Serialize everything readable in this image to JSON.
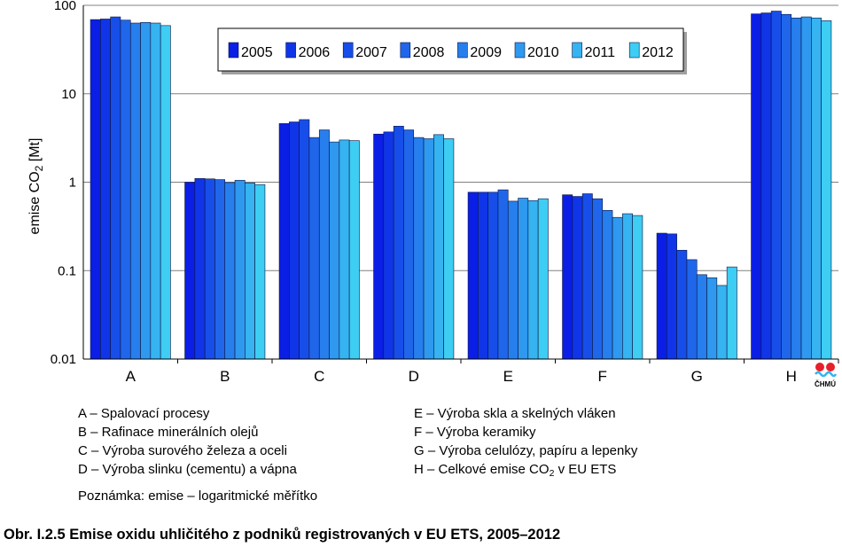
{
  "chart_data": {
    "type": "bar",
    "ylabel": "emise CO",
    "ylabel_sub": "2",
    "ylabel_unit": " [Mt]",
    "yscale": "log",
    "ylim": [
      0.01,
      100
    ],
    "yticks": [
      "100",
      "10",
      "1",
      "0.1",
      "0.01"
    ],
    "grid": true,
    "legend_position": "top-center",
    "categories": [
      "A",
      "B",
      "C",
      "D",
      "E",
      "F",
      "G",
      "H"
    ],
    "series": [
      {
        "name": "2005",
        "color": "#0a1ee6",
        "values": [
          69,
          1.0,
          4.6,
          3.5,
          0.77,
          0.72,
          0.265,
          80
        ]
      },
      {
        "name": "2006",
        "color": "#1035e8",
        "values": [
          70,
          1.1,
          4.8,
          3.7,
          0.77,
          0.69,
          0.26,
          82
        ]
      },
      {
        "name": "2007",
        "color": "#174ee9",
        "values": [
          74,
          1.09,
          5.1,
          4.3,
          0.77,
          0.74,
          0.17,
          86
        ]
      },
      {
        "name": "2008",
        "color": "#1f66eb",
        "values": [
          68,
          1.07,
          3.2,
          3.9,
          0.82,
          0.65,
          0.133,
          79
        ]
      },
      {
        "name": "2009",
        "color": "#267fed",
        "values": [
          63,
          0.99,
          3.9,
          3.2,
          0.61,
          0.48,
          0.09,
          72
        ]
      },
      {
        "name": "2010",
        "color": "#2e99ef",
        "values": [
          64,
          1.05,
          2.85,
          3.1,
          0.66,
          0.4,
          0.083,
          74
        ]
      },
      {
        "name": "2011",
        "color": "#36b3f1",
        "values": [
          63,
          0.98,
          3.0,
          3.45,
          0.62,
          0.44,
          0.068,
          72
        ]
      },
      {
        "name": "2012",
        "color": "#3ecdf3",
        "values": [
          59,
          0.94,
          2.95,
          3.1,
          0.65,
          0.42,
          0.11,
          67
        ]
      }
    ]
  },
  "logo": {
    "text": "ČHMÚ"
  },
  "notes_left": [
    "A – Spalovací procesy",
    "B – Rafinace minerálních olejů",
    "C – Výroba surového železa a oceli",
    "D – Výroba slinku (cementu) a vápna"
  ],
  "notes_right": [
    "E – Výroba skla a skelných vláken",
    "F – Výroba keramiky",
    "G – Výroba celulózy, papíru a lepenky",
    {
      "before": "H – Celkové emise CO",
      "sub": "2",
      "after": " v EU ETS"
    }
  ],
  "note": "Poznámka: emise – logaritmické měřítko",
  "caption": "Obr. I.2.5  Emise oxidu uhličitého z podniků registrovaných v EU ETS, 2005–2012"
}
